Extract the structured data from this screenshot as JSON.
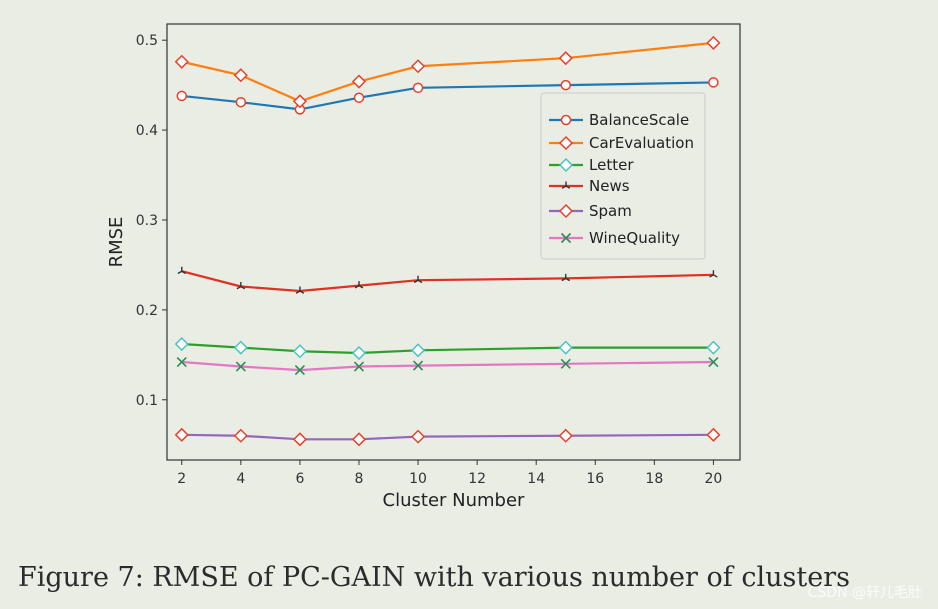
{
  "chart_data": {
    "type": "line",
    "xlabel": "Cluster Number",
    "ylabel": "RMSE",
    "x": [
      2,
      4,
      6,
      8,
      10,
      15,
      20
    ],
    "xlim": [
      1.5,
      20.9
    ],
    "ylim": [
      0.033,
      0.518
    ],
    "xticks": [
      2,
      4,
      6,
      8,
      10,
      12,
      14,
      16,
      18,
      20
    ],
    "yticks": [
      0.1,
      0.2,
      0.3,
      0.4,
      0.5
    ],
    "ytick_labels": [
      "0.1",
      "0.2",
      "0.3",
      "0.4",
      "0.5"
    ],
    "grid": false,
    "legend_position": "upper-right",
    "series": [
      {
        "name": "BalanceScale",
        "color": "#1f77b4",
        "marker": "circle",
        "marker_color": "#e8402a",
        "values": [
          0.438,
          0.431,
          0.423,
          0.436,
          0.447,
          0.45,
          0.453
        ]
      },
      {
        "name": "CarEvaluation",
        "color": "#ff7f0e",
        "marker": "diamond",
        "marker_color": "#e8402a",
        "values": [
          0.476,
          0.461,
          0.432,
          0.454,
          0.471,
          0.48,
          0.497
        ]
      },
      {
        "name": "Letter",
        "color": "#2ca02c",
        "marker": "diamond",
        "marker_color": "#4cc3c3",
        "values": [
          0.162,
          0.158,
          0.154,
          0.152,
          0.155,
          0.158,
          0.158
        ]
      },
      {
        "name": "News",
        "color": "#e03020",
        "marker": "tri",
        "marker_color": "#333333",
        "values": [
          0.243,
          0.226,
          0.221,
          0.227,
          0.233,
          0.235,
          0.239
        ]
      },
      {
        "name": "Spam",
        "color": "#9467bd",
        "marker": "diamond",
        "marker_color": "#e8402a",
        "values": [
          0.061,
          0.06,
          0.056,
          0.056,
          0.059,
          0.06,
          0.061
        ]
      },
      {
        "name": "WineQuality",
        "color": "#e377c2",
        "marker": "x",
        "marker_color": "#2e8b57",
        "values": [
          0.142,
          0.137,
          0.133,
          0.137,
          0.138,
          0.14,
          0.142
        ]
      }
    ]
  },
  "caption": "Figure 7: RMSE of PC-GAIN with various number of clusters",
  "watermark": "CSDN @轩儿毛肚"
}
